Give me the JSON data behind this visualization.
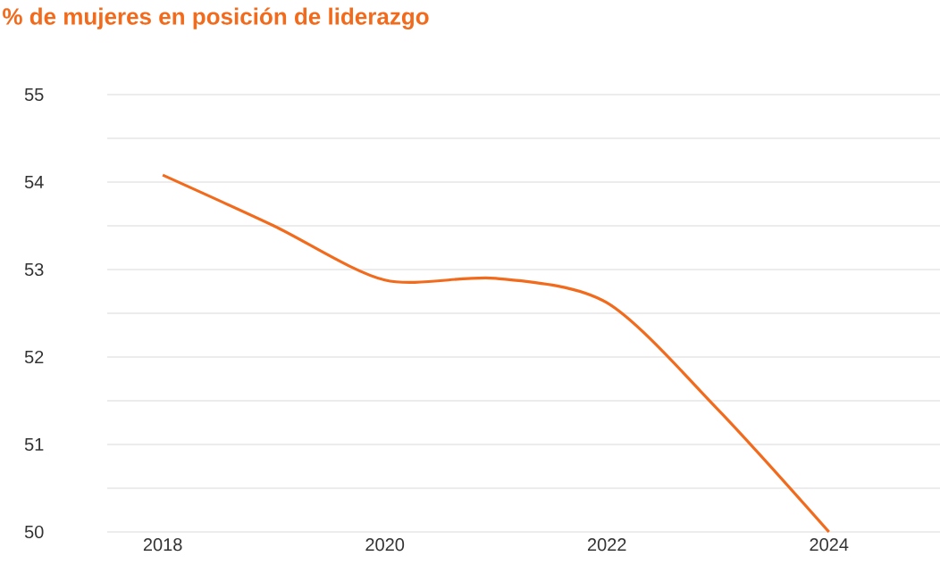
{
  "chart_data": {
    "type": "line",
    "title": "% de mujeres en posición de liderazgo",
    "x": [
      2018,
      2019,
      2020,
      2021,
      2022,
      2023,
      2024
    ],
    "series": [
      {
        "color": "#f26b1d",
        "values": [
          54.08,
          53.5,
          52.88,
          52.9,
          52.62,
          51.4,
          50.0
        ]
      }
    ],
    "xlim": [
      2017.5,
      2025
    ],
    "xticks": [
      2018,
      2020,
      2022,
      2024
    ],
    "ylim": [
      50,
      55
    ],
    "yticks": [
      50,
      {
        "value": 50.5,
        "label": null
      },
      51,
      {
        "value": 51.5,
        "label": null
      },
      52,
      {
        "value": 52.5,
        "label": null
      },
      53,
      {
        "value": 53.5,
        "label": null
      },
      54,
      {
        "value": 54.5,
        "label": null
      },
      55
    ],
    "grid": "y"
  }
}
